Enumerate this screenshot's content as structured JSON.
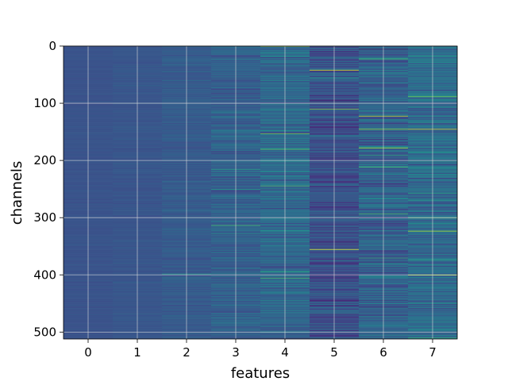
{
  "chart_data": {
    "type": "heatmap",
    "title": "",
    "xlabel": "features",
    "ylabel": "channels",
    "columns": [
      0,
      1,
      2,
      3,
      4,
      5,
      6,
      7
    ],
    "x_ticks": [
      "0",
      "1",
      "2",
      "3",
      "4",
      "5",
      "6",
      "7"
    ],
    "y_ticks": [
      "0",
      "100",
      "200",
      "300",
      "400",
      "500"
    ],
    "y_tick_values": [
      0,
      100,
      200,
      300,
      400,
      500
    ],
    "xlim": [
      -0.5,
      7.5
    ],
    "ylim": [
      512,
      0
    ],
    "rows": 512,
    "colormap": "viridis",
    "grid": true,
    "colors": {
      "grid": "#d9d9d9",
      "axis": "#000000",
      "background": "#3b528b"
    },
    "column_stats": [
      {
        "feature": 0,
        "mean": 0.26,
        "spread": 0.018,
        "spikes": []
      },
      {
        "feature": 1,
        "mean": 0.27,
        "spread": 0.025,
        "spikes": []
      },
      {
        "feature": 2,
        "mean": 0.29,
        "spread": 0.045,
        "spikes": [
          {
            "channel": 398,
            "value": 0.55
          }
        ]
      },
      {
        "feature": 3,
        "mean": 0.31,
        "spread": 0.09,
        "spikes": [
          {
            "channel": 313,
            "value": 0.7
          },
          {
            "channel": 215,
            "value": 0.58
          },
          {
            "channel": 250,
            "value": 0.55
          }
        ]
      },
      {
        "feature": 4,
        "mean": 0.34,
        "spread": 0.12,
        "spikes": [
          {
            "channel": 0,
            "value": 0.95
          },
          {
            "channel": 153,
            "value": 0.78
          },
          {
            "channel": 180,
            "value": 0.75
          },
          {
            "channel": 244,
            "value": 0.72
          },
          {
            "channel": 405,
            "value": 0.72
          }
        ]
      },
      {
        "feature": 5,
        "mean": 0.25,
        "spread": 0.13,
        "spikes": [
          {
            "channel": 42,
            "value": 0.95
          },
          {
            "channel": 110,
            "value": 0.82
          },
          {
            "channel": 355,
            "value": 0.98
          }
        ]
      },
      {
        "feature": 6,
        "mean": 0.32,
        "spread": 0.14,
        "spikes": [
          {
            "channel": 5,
            "value": 0.02
          },
          {
            "channel": 22,
            "value": 0.7
          },
          {
            "channel": 122,
            "value": 0.92
          },
          {
            "channel": 145,
            "value": 0.85
          },
          {
            "channel": 178,
            "value": 0.88
          },
          {
            "channel": 293,
            "value": 0.7
          },
          {
            "channel": 370,
            "value": 0.65
          }
        ]
      },
      {
        "feature": 7,
        "mean": 0.35,
        "spread": 0.13,
        "spikes": [
          {
            "channel": 88,
            "value": 0.8
          },
          {
            "channel": 145,
            "value": 0.95
          },
          {
            "channel": 300,
            "value": 0.72
          },
          {
            "channel": 323,
            "value": 0.9
          },
          {
            "channel": 400,
            "value": 0.92
          }
        ]
      }
    ]
  }
}
